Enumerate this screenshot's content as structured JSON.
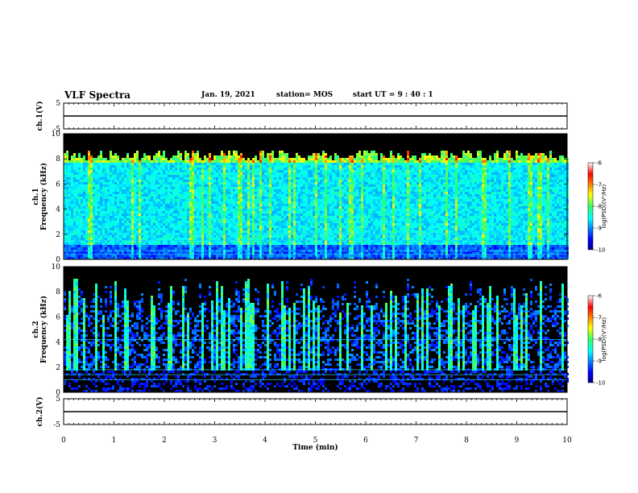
{
  "header": {
    "title": "VLF Spectra",
    "date": "Jan. 19, 2021",
    "station": "station= MOS",
    "start": "start  UT =   9 : 40 : 1"
  },
  "chart_data": [
    {
      "type": "line",
      "panel": "ch.1 voltage",
      "ylabel": "ch.1(V)",
      "ylim": [
        -5,
        5
      ],
      "yticks": [
        "5",
        "-5"
      ],
      "x": [
        0,
        10
      ],
      "series": [
        {
          "values": [
            0,
            0
          ]
        }
      ]
    },
    {
      "type": "heatmap",
      "panel": "ch.1 spectrogram",
      "ylabel": "ch.1\nFrequency (kHz)",
      "ylim": [
        0,
        10
      ],
      "yticks": [
        "0",
        "2",
        "4",
        "6",
        "8",
        "10"
      ],
      "xlim": [
        0,
        10
      ],
      "colorbar": {
        "label": "log(PSD)(V²/Hz)",
        "ticks": [
          "-6",
          "-7",
          "-8",
          "-9",
          "-10"
        ],
        "range": [
          -10,
          -6
        ]
      }
    },
    {
      "type": "heatmap",
      "panel": "ch.2 spectrogram",
      "ylabel": "ch.2\nFrequency (kHz)",
      "ylim": [
        0,
        10
      ],
      "yticks": [
        "0",
        "2",
        "4",
        "6",
        "8",
        "10"
      ],
      "xlim": [
        0,
        10
      ],
      "colorbar": {
        "label": "log(PSD)(V²/Hz)",
        "ticks": [
          "-6",
          "-7",
          "-8",
          "-9",
          "-10"
        ],
        "range": [
          -10,
          -6
        ]
      }
    },
    {
      "type": "line",
      "panel": "ch.2 voltage",
      "ylabel": "ch.2(V)",
      "ylim": [
        -5,
        5
      ],
      "yticks": [
        "5",
        "-5"
      ],
      "x": [
        0,
        10
      ],
      "series": [
        {
          "values": [
            0,
            0
          ]
        }
      ]
    }
  ],
  "xaxis": {
    "label": "Time (min)",
    "ticks": [
      "0",
      "1",
      "2",
      "3",
      "4",
      "5",
      "6",
      "7",
      "8",
      "9",
      "10"
    ]
  }
}
